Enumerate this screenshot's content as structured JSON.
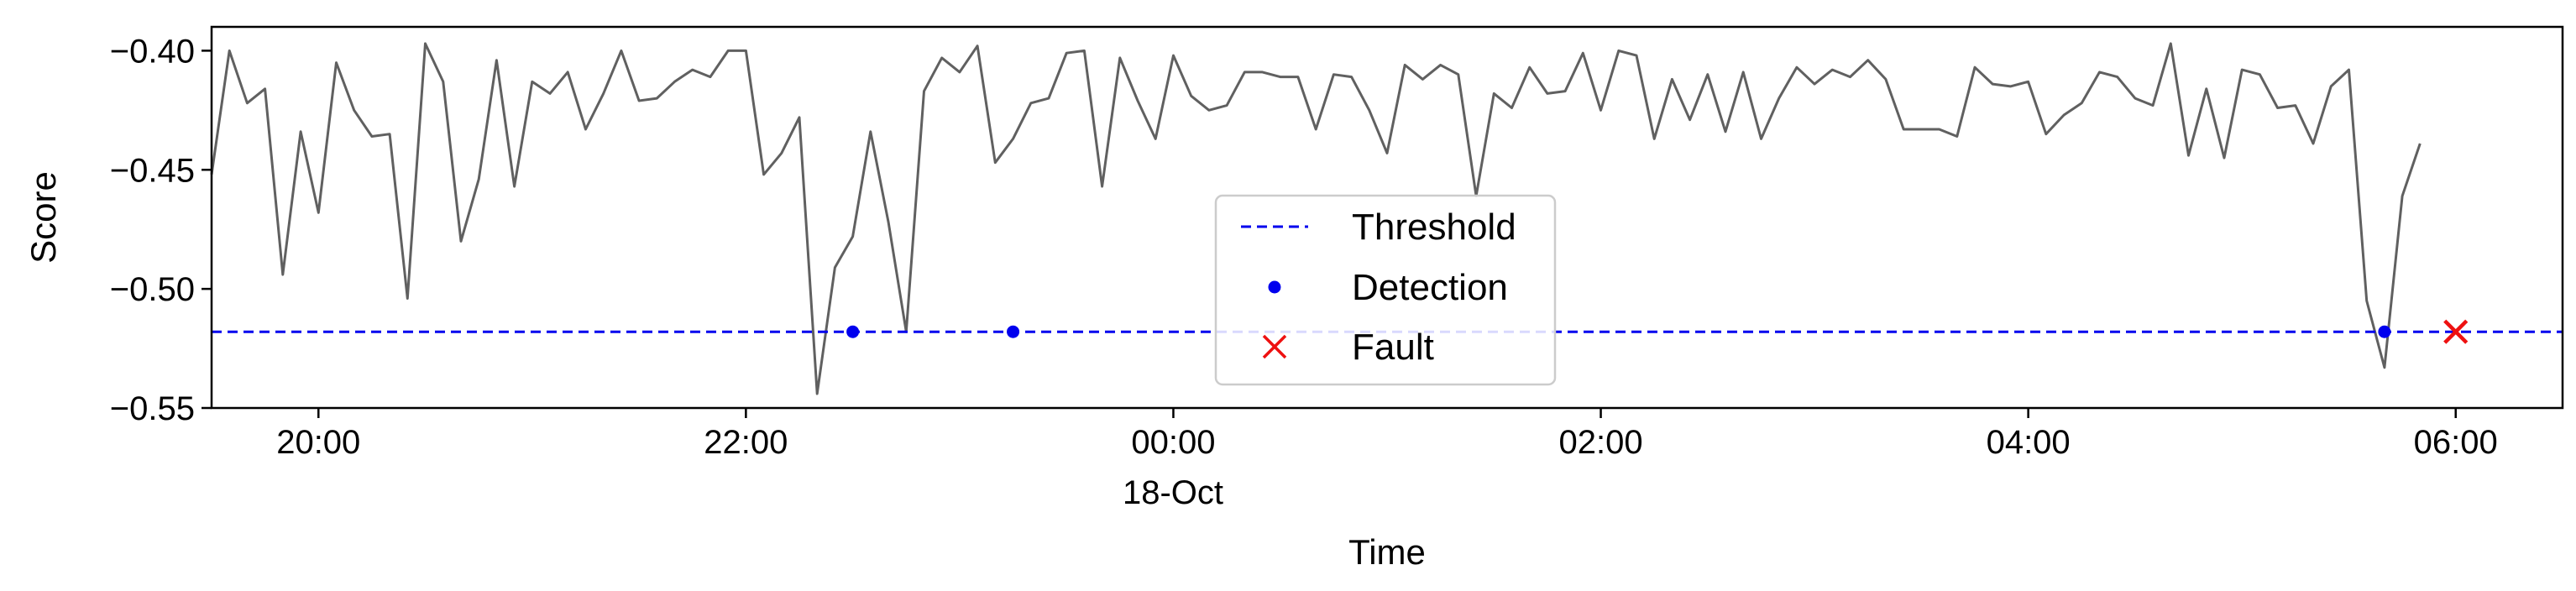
{
  "chart_data": {
    "type": "line",
    "title": "",
    "xlabel": "Time",
    "ylabel": "Score",
    "x_date_label": "18-Oct",
    "x_range": [
      "17-Oct 19:30",
      "18-Oct 06:30"
    ],
    "ylim": [
      -0.55,
      -0.39
    ],
    "y_ticks": [
      -0.55,
      -0.5,
      -0.45,
      -0.4
    ],
    "y_tick_labels": [
      "−0.55",
      "−0.50",
      "−0.45",
      "−0.40"
    ],
    "x_ticks": [
      "17-Oct 20:00",
      "17-Oct 22:00",
      "18-Oct 00:00",
      "18-Oct 02:00",
      "18-Oct 04:00",
      "18-Oct 06:00"
    ],
    "x_tick_labels": [
      "20:00",
      "22:00",
      "00:00",
      "02:00",
      "04:00",
      "06:00"
    ],
    "grid": false,
    "legend_position": "lower-center",
    "colors": {
      "score": "#606060",
      "threshold": "#0000ee",
      "detection": "#0000ee",
      "fault": "#ee1111"
    },
    "series": [
      {
        "type": "line",
        "x": [
          "17-Oct 19:30",
          "17-Oct 19:35",
          "17-Oct 19:40",
          "17-Oct 19:45",
          "17-Oct 19:50",
          "17-Oct 19:55",
          "17-Oct 20:00",
          "17-Oct 20:05",
          "17-Oct 20:10",
          "17-Oct 20:15",
          "17-Oct 20:20",
          "17-Oct 20:25",
          "17-Oct 20:30",
          "17-Oct 20:35",
          "17-Oct 20:40",
          "17-Oct 20:45",
          "17-Oct 20:50",
          "17-Oct 20:55",
          "17-Oct 21:00",
          "17-Oct 21:05",
          "17-Oct 21:10",
          "17-Oct 21:15",
          "17-Oct 21:20",
          "17-Oct 21:25",
          "17-Oct 21:30",
          "17-Oct 21:35",
          "17-Oct 21:40",
          "17-Oct 21:45",
          "17-Oct 21:50",
          "17-Oct 21:55",
          "17-Oct 22:00",
          "17-Oct 22:05",
          "17-Oct 22:10",
          "17-Oct 22:15",
          "17-Oct 22:20",
          "17-Oct 22:25",
          "17-Oct 22:30",
          "17-Oct 22:35",
          "17-Oct 22:40",
          "17-Oct 22:45",
          "17-Oct 22:50",
          "17-Oct 22:55",
          "17-Oct 23:00",
          "17-Oct 23:05",
          "17-Oct 23:10",
          "17-Oct 23:15",
          "17-Oct 23:20",
          "17-Oct 23:25",
          "17-Oct 23:30",
          "17-Oct 23:35",
          "17-Oct 23:40",
          "17-Oct 23:45",
          "17-Oct 23:50",
          "17-Oct 23:55",
          "18-Oct 00:00",
          "18-Oct 00:05",
          "18-Oct 00:10",
          "18-Oct 00:15",
          "18-Oct 00:20",
          "18-Oct 00:25",
          "18-Oct 00:30",
          "18-Oct 00:35",
          "18-Oct 00:40",
          "18-Oct 00:45",
          "18-Oct 00:50",
          "18-Oct 00:55",
          "18-Oct 01:00",
          "18-Oct 01:05",
          "18-Oct 01:10",
          "18-Oct 01:15",
          "18-Oct 01:20",
          "18-Oct 01:25",
          "18-Oct 01:30",
          "18-Oct 01:35",
          "18-Oct 01:40",
          "18-Oct 01:45",
          "18-Oct 01:50",
          "18-Oct 01:55",
          "18-Oct 02:00",
          "18-Oct 02:05",
          "18-Oct 02:10",
          "18-Oct 02:15",
          "18-Oct 02:20",
          "18-Oct 02:25",
          "18-Oct 02:30",
          "18-Oct 02:35",
          "18-Oct 02:40",
          "18-Oct 02:45",
          "18-Oct 02:50",
          "18-Oct 02:55",
          "18-Oct 03:00",
          "18-Oct 03:05",
          "18-Oct 03:10",
          "18-Oct 03:15",
          "18-Oct 03:20",
          "18-Oct 03:25",
          "18-Oct 03:30",
          "18-Oct 03:35",
          "18-Oct 03:40",
          "18-Oct 03:45",
          "18-Oct 03:50",
          "18-Oct 03:55",
          "18-Oct 04:00",
          "18-Oct 04:05",
          "18-Oct 04:10",
          "18-Oct 04:15",
          "18-Oct 04:20",
          "18-Oct 04:25",
          "18-Oct 04:30",
          "18-Oct 04:35",
          "18-Oct 04:40",
          "18-Oct 04:45",
          "18-Oct 04:50",
          "18-Oct 04:55",
          "18-Oct 05:00",
          "18-Oct 05:05",
          "18-Oct 05:10",
          "18-Oct 05:15",
          "18-Oct 05:20",
          "18-Oct 05:25",
          "18-Oct 05:30",
          "18-Oct 05:35",
          "18-Oct 05:40",
          "18-Oct 05:45",
          "18-Oct 05:50"
        ],
        "y": [
          -0.452,
          -0.4,
          -0.422,
          -0.416,
          -0.494,
          -0.434,
          -0.468,
          -0.405,
          -0.425,
          -0.436,
          -0.435,
          -0.504,
          -0.397,
          -0.413,
          -0.48,
          -0.454,
          -0.404,
          -0.457,
          -0.413,
          -0.418,
          -0.409,
          -0.433,
          -0.418,
          -0.4,
          -0.421,
          -0.42,
          -0.413,
          -0.408,
          -0.411,
          -0.4,
          -0.4,
          -0.452,
          -0.443,
          -0.428,
          -0.544,
          -0.491,
          -0.478,
          -0.434,
          -0.472,
          -0.518,
          -0.417,
          -0.403,
          -0.409,
          -0.398,
          -0.447,
          -0.437,
          -0.422,
          -0.42,
          -0.401,
          -0.4,
          -0.457,
          -0.403,
          -0.421,
          -0.437,
          -0.402,
          -0.419,
          -0.425,
          -0.423,
          -0.409,
          -0.409,
          -0.411,
          -0.411,
          -0.433,
          -0.41,
          -0.411,
          -0.425,
          -0.443,
          -0.406,
          -0.412,
          -0.406,
          -0.41,
          -0.461,
          -0.418,
          -0.424,
          -0.407,
          -0.418,
          -0.417,
          -0.401,
          -0.425,
          -0.4,
          -0.402,
          -0.437,
          -0.412,
          -0.429,
          -0.41,
          -0.434,
          -0.409,
          -0.437,
          -0.42,
          -0.407,
          -0.414,
          -0.408,
          -0.411,
          -0.404,
          -0.412,
          -0.433,
          -0.433,
          -0.433,
          -0.436,
          -0.407,
          -0.414,
          -0.415,
          -0.413,
          -0.435,
          -0.427,
          -0.422,
          -0.409,
          -0.411,
          -0.42,
          -0.423,
          -0.397,
          -0.444,
          -0.416,
          -0.445,
          -0.408,
          -0.41,
          -0.424,
          -0.423,
          -0.439,
          -0.415,
          -0.408,
          -0.505,
          -0.533,
          -0.461,
          -0.439
        ]
      },
      {
        "name": "Threshold",
        "type": "hline",
        "y": -0.518
      },
      {
        "name": "Detection",
        "type": "scatter",
        "x": [
          "17-Oct 22:30",
          "17-Oct 23:15",
          "18-Oct 05:40"
        ],
        "y": [
          -0.518,
          -0.518,
          -0.518
        ]
      },
      {
        "name": "Fault",
        "type": "scatter",
        "x": [
          "18-Oct 06:00"
        ],
        "y": [
          -0.518
        ]
      }
    ],
    "legend": [
      "Threshold",
      "Detection",
      "Fault"
    ]
  }
}
